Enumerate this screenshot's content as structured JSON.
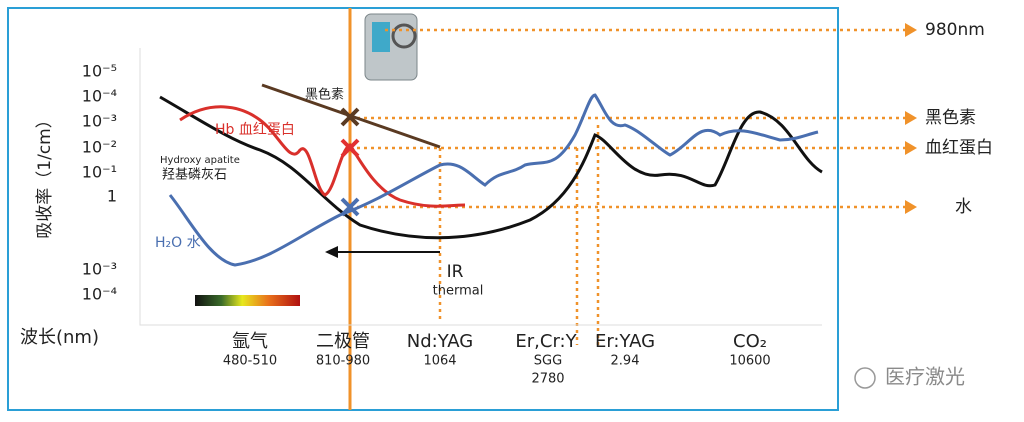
{
  "y_axis": {
    "title": "吸收率（1/cm）",
    "ticks": [
      "10⁻⁵",
      "10⁻⁴",
      "10⁻³",
      "10⁻²",
      "10⁻¹",
      "1",
      "10⁻³",
      "10⁻⁴"
    ]
  },
  "x_axis": {
    "title": "波长(nm)",
    "lasers": [
      {
        "lines": [
          "氩气",
          "480-510"
        ]
      },
      {
        "lines": [
          "二极管",
          "810-980"
        ]
      },
      {
        "lines": [
          "Nd:YAG",
          "1064"
        ]
      },
      {
        "lines": [
          "Er,Cr:Y",
          "SGG",
          "2780"
        ]
      },
      {
        "lines": [
          "Er:YAG",
          "2.94"
        ]
      },
      {
        "lines": [
          "CO₂",
          "10600"
        ]
      }
    ]
  },
  "curve_labels": {
    "melanin": "黑色素",
    "hb": "Hb 血红蛋白",
    "apatite_en": "Hydroxy apatite",
    "apatite_cn": "羟基磷灰石",
    "water": "H₂O 水"
  },
  "ir": "IR",
  "thermal": "thermal",
  "targets": [
    "980nm",
    "黑色素",
    "血红蛋白",
    "水"
  ],
  "watermark": "医疗激光"
}
